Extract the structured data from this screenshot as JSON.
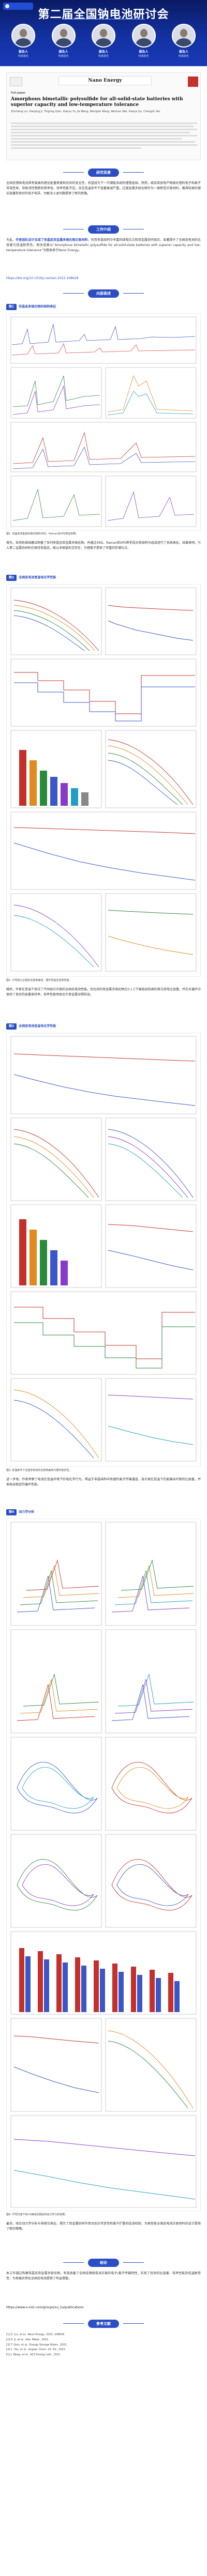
{
  "banner": {
    "title": "第二届全国钠电池研讨会",
    "speakers": [
      {
        "name": "报告人",
        "org": "特邀报告"
      },
      {
        "name": "报告人",
        "org": "特邀报告"
      },
      {
        "name": "报告人",
        "org": "特邀报告"
      },
      {
        "name": "报告人",
        "org": "特邀报告"
      },
      {
        "name": "报告人",
        "org": "特邀报告"
      }
    ]
  },
  "paper": {
    "journal": "Nano Energy",
    "article_type": "Full paper",
    "title": "Amorphous bimetallic polysulfide for all-solid-state batteries with superior capacity and low-temperature tolerance",
    "authors": "Zhicheng Liu, Haoqing Ji, Tingting Qian, Xiaoyu Yu, Jie Wang, Mengfan Wang, Wenhan Wei, Xiaoya Qu, Chenglin Yan"
  },
  "sections": {
    "intro_title": "研究背景",
    "work_title": "工作介绍",
    "content_title": "内容表述",
    "summary_title": "结论",
    "refs_title": "参考文献"
  },
  "text": {
    "intro": "全固态锂硫电池具有极高的理论能量密度和优异的安全性，有望成为下一代储能系统的理想选择。然而，硫及其放电产物硫化锂的电子和离子导电性差，导致活性物质利用率低、倍率性能不佳，且在低温条件下容量衰减严重。过渡金属多硫化物作为一类新型正极材料，兼具较高的理论容量和良好的电子电导，为解决上述问题提供了新的思路。",
    "work_pre": "为此，",
    "work_hl": "作者团队设计合成了非晶态双金属多硫化物正极材料",
    "work_post": "，利用非晶结构中丰富的缺陷位点和双金属协同效应，显著提升了全固态电池的比容量与低温耐受性。相关成果以“Amorphous bimetallic polysulfide for all-solid-state batteries with superior capacity and low-temperature tolerance”为题发表于Nano Energy。",
    "doi": "https://doi.org/10.1016/j.nanoen.2023.108628",
    "p1": "首先，采用机械球磨法制备了系列非晶态双金属多硫化物，并通过XRD、Raman和XPS等手段对其结构与组成进行了系统表征。结果表明，引入第二金属后材料仍保持非晶态，硫以多硫链形式存在，为锂离子提供了丰富的存储位点。",
    "p2": "随后，作者在室温下测试了不同组分正极的全固态电池性能。优化后的双金属多硫化物在0.1 C下展现出较高的首次放电比容量，并在长循环中保持了良好的容量保持率，倍率性能明显优于单金属对照样品。",
    "p3": "进一步地，作者考察了电池在低温环境下的电化学行为。得益于非晶结构中快速的离子传输通道，该正极在低温下仍能输出可观的比容量，并表现出稳定的循环性能。",
    "p4": "最后，结合动力学分析与非原位表征，揭示了双金属协同作用对反应可逆性和离子扩散的促进机制，为高性能全固态电池正极材料的设计提供了新的策略。",
    "summary": "本工作通过构建非晶态双金属多硫化物，有效改善了全固态锂硫电池正极的电子/离子传输特性，实现了优异的比容量、倍率性能及低温耐受性，为发展实用化全固态电池提供了有益借鉴。",
    "link_label": "https://www.x-mol.com/groups/xu_liu/publications"
  },
  "figures": {
    "f1_tag": "图1",
    "f1_title": "非晶态多硫化物的结构表征",
    "f1_cap": "图1. 非晶态双金属多硫化物的XRD、Raman及XPS表征结果。",
    "f2_tag": "图2",
    "f2_title": "全固态电池室温电化学性能",
    "f2_cap": "图2. 不同组分正极的充放电曲线、循环性能及倍率性能。",
    "f3_tag": "图3",
    "f3_title": "全固态电池低温电化学性能",
    "f3_cap": "图3. 低温条件下全固态电池的充放电曲线与循环稳定性。",
    "f4_tag": "图4",
    "f4_title": "动力学分析",
    "f4_cap": "图4. 不同扫速下的CV曲线及相应的动力学分析结果。"
  },
  "references": [
    "[1] Z. Liu, et al., Nano Energy, 2023, 108628.",
    "[2] H. Ji, et al., Adv. Mater., 2022.",
    "[3] T. Qian, et al., Energy Storage Mater., 2022.",
    "[4] C. Yan, et al., Angew. Chem. Int. Ed., 2021.",
    "[5] J. Wang, et al., ACS Energy Lett., 2021."
  ]
}
